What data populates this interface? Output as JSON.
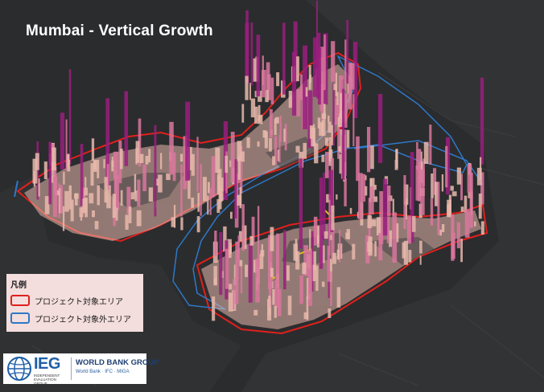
{
  "title": "Mumbai - Vertical Growth",
  "legend": {
    "heading": "凡例",
    "items": [
      {
        "label": "プロジェクト対象エリア",
        "color": "#e0201c"
      },
      {
        "label": "プロジェクト対象外エリア",
        "color": "#2e78c7"
      }
    ]
  },
  "logo": {
    "ieg": "IEG",
    "ieg_sub": "INDEPENDENT EVALUATION GROUP",
    "wbg": "WORLD BANK GROUP",
    "wbg_sub": "World Bank · IFC · MIGA"
  },
  "colors": {
    "background": "#2b2c2e",
    "building_base": "#e8b8ac",
    "building_mid": "#d9779e",
    "building_high": "#9a1f7e",
    "project_area": "#e0201c",
    "non_project_area": "#2e78c7",
    "road_highlight": "#e8b91e"
  }
}
